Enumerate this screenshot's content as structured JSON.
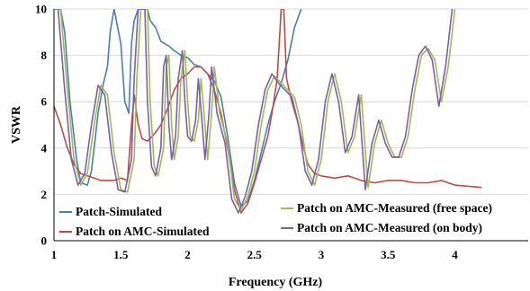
{
  "chart_data": {
    "type": "line",
    "xlabel": "Frequency (GHz)",
    "ylabel": "VSWR",
    "xlim": [
      1,
      4.2
    ],
    "ylim": [
      0,
      10
    ],
    "x_ticks": [
      "1",
      "1.5",
      "2",
      "2.5",
      "3",
      "3.5",
      "4"
    ],
    "y_ticks": [
      "0",
      "2",
      "4",
      "6",
      "8",
      "10"
    ],
    "grid": "horizontal",
    "legend_position": "bottom",
    "series": [
      {
        "name": "Patch-Simulated",
        "color": "#4a7ebb",
        "points": [
          [
            1.0,
            10.0
          ],
          [
            1.05,
            10.0
          ],
          [
            1.08,
            9.0
          ],
          [
            1.12,
            6.0
          ],
          [
            1.17,
            3.5
          ],
          [
            1.2,
            2.5
          ],
          [
            1.25,
            2.4
          ],
          [
            1.28,
            3.0
          ],
          [
            1.33,
            5.5
          ],
          [
            1.37,
            6.8
          ],
          [
            1.4,
            7.5
          ],
          [
            1.42,
            9.0
          ],
          [
            1.45,
            10.0
          ],
          [
            1.5,
            8.5
          ],
          [
            1.53,
            6.0
          ],
          [
            1.56,
            5.5
          ],
          [
            1.58,
            8.5
          ],
          [
            1.6,
            9.5
          ],
          [
            1.63,
            10.0
          ],
          [
            1.7,
            10.0
          ],
          [
            1.72,
            9.5
          ],
          [
            1.76,
            9.2
          ],
          [
            1.8,
            8.6
          ],
          [
            1.86,
            8.4
          ],
          [
            1.9,
            8.2
          ],
          [
            1.95,
            8.0
          ],
          [
            2.0,
            7.9
          ],
          [
            2.05,
            7.6
          ],
          [
            2.1,
            7.5
          ],
          [
            2.15,
            7.2
          ],
          [
            2.2,
            6.9
          ],
          [
            2.25,
            6.2
          ],
          [
            2.3,
            4.5
          ],
          [
            2.35,
            2.5
          ],
          [
            2.4,
            1.5
          ],
          [
            2.45,
            1.7
          ],
          [
            2.5,
            2.6
          ],
          [
            2.55,
            3.8
          ],
          [
            2.6,
            5.0
          ],
          [
            2.65,
            6.0
          ],
          [
            2.7,
            6.8
          ],
          [
            2.75,
            7.8
          ],
          [
            2.8,
            9.2
          ],
          [
            2.85,
            10.0
          ]
        ]
      },
      {
        "name": "Patch on AMC-Simulated",
        "color": "#be4b48",
        "points": [
          [
            1.0,
            5.8
          ],
          [
            1.05,
            5.0
          ],
          [
            1.1,
            4.0
          ],
          [
            1.15,
            3.3
          ],
          [
            1.2,
            2.9
          ],
          [
            1.25,
            2.8
          ],
          [
            1.3,
            2.7
          ],
          [
            1.35,
            2.6
          ],
          [
            1.4,
            2.6
          ],
          [
            1.45,
            2.6
          ],
          [
            1.5,
            2.7
          ],
          [
            1.55,
            2.6
          ],
          [
            1.58,
            5.0
          ],
          [
            1.6,
            6.3
          ],
          [
            1.63,
            5.0
          ],
          [
            1.66,
            4.4
          ],
          [
            1.7,
            4.3
          ],
          [
            1.75,
            4.6
          ],
          [
            1.8,
            5.0
          ],
          [
            1.85,
            5.7
          ],
          [
            1.9,
            6.5
          ],
          [
            1.95,
            7.0
          ],
          [
            2.0,
            7.2
          ],
          [
            2.05,
            7.5
          ],
          [
            2.1,
            7.5
          ],
          [
            2.15,
            7.2
          ],
          [
            2.2,
            6.5
          ],
          [
            2.25,
            5.5
          ],
          [
            2.3,
            4.0
          ],
          [
            2.35,
            2.2
          ],
          [
            2.4,
            1.2
          ],
          [
            2.45,
            1.6
          ],
          [
            2.5,
            2.5
          ],
          [
            2.55,
            3.5
          ],
          [
            2.6,
            4.5
          ],
          [
            2.64,
            5.8
          ],
          [
            2.67,
            7.0
          ],
          [
            2.7,
            10.0
          ],
          [
            2.72,
            10.0
          ],
          [
            2.74,
            7.0
          ],
          [
            2.78,
            6.0
          ],
          [
            2.82,
            5.2
          ],
          [
            2.86,
            4.2
          ],
          [
            2.9,
            3.3
          ],
          [
            2.95,
            2.9
          ],
          [
            3.0,
            2.8
          ],
          [
            3.1,
            2.7
          ],
          [
            3.2,
            2.8
          ],
          [
            3.3,
            2.6
          ],
          [
            3.4,
            2.5
          ],
          [
            3.5,
            2.6
          ],
          [
            3.6,
            2.6
          ],
          [
            3.7,
            2.5
          ],
          [
            3.8,
            2.5
          ],
          [
            3.9,
            2.6
          ],
          [
            4.0,
            2.4
          ],
          [
            4.2,
            2.3
          ]
        ]
      },
      {
        "name": "Patch on AMC-Measured (free space)",
        "color": "#9bbb59",
        "points": [
          [
            1.05,
            10.0
          ],
          [
            1.1,
            6.5
          ],
          [
            1.15,
            3.5
          ],
          [
            1.2,
            2.4
          ],
          [
            1.25,
            2.9
          ],
          [
            1.3,
            5.0
          ],
          [
            1.35,
            6.7
          ],
          [
            1.4,
            6.3
          ],
          [
            1.45,
            3.8
          ],
          [
            1.5,
            2.2
          ],
          [
            1.55,
            2.1
          ],
          [
            1.6,
            3.5
          ],
          [
            1.62,
            7.0
          ],
          [
            1.65,
            10.0
          ],
          [
            1.7,
            10.0
          ],
          [
            1.72,
            6.0
          ],
          [
            1.75,
            3.2
          ],
          [
            1.78,
            2.8
          ],
          [
            1.82,
            4.0
          ],
          [
            1.84,
            7.5
          ],
          [
            1.86,
            8.0
          ],
          [
            1.88,
            5.0
          ],
          [
            1.9,
            3.5
          ],
          [
            1.93,
            4.5
          ],
          [
            1.95,
            7.0
          ],
          [
            1.98,
            8.2
          ],
          [
            2.0,
            6.0
          ],
          [
            2.02,
            4.5
          ],
          [
            2.05,
            4.3
          ],
          [
            2.08,
            5.2
          ],
          [
            2.1,
            7.0
          ],
          [
            2.13,
            5.0
          ],
          [
            2.15,
            3.5
          ],
          [
            2.18,
            5.5
          ],
          [
            2.2,
            7.5
          ],
          [
            2.22,
            6.5
          ],
          [
            2.24,
            5.5
          ],
          [
            2.3,
            4.2
          ],
          [
            2.35,
            1.8
          ],
          [
            2.4,
            1.3
          ],
          [
            2.45,
            1.9
          ],
          [
            2.5,
            3.0
          ],
          [
            2.55,
            5.0
          ],
          [
            2.6,
            6.5
          ],
          [
            2.65,
            7.1
          ],
          [
            2.7,
            6.8
          ],
          [
            2.75,
            6.5
          ],
          [
            2.8,
            6.2
          ],
          [
            2.85,
            5.0
          ],
          [
            2.9,
            3.0
          ],
          [
            2.95,
            2.4
          ],
          [
            3.0,
            3.5
          ],
          [
            3.05,
            6.0
          ],
          [
            3.1,
            7.2
          ],
          [
            3.15,
            6.0
          ],
          [
            3.2,
            3.8
          ],
          [
            3.25,
            4.5
          ],
          [
            3.3,
            6.3
          ],
          [
            3.35,
            2.3
          ],
          [
            3.4,
            4.2
          ],
          [
            3.45,
            5.2
          ],
          [
            3.5,
            4.2
          ],
          [
            3.55,
            3.6
          ],
          [
            3.6,
            3.6
          ],
          [
            3.65,
            4.5
          ],
          [
            3.7,
            6.5
          ],
          [
            3.75,
            8.0
          ],
          [
            3.8,
            8.3
          ],
          [
            3.85,
            7.8
          ],
          [
            3.9,
            6.0
          ],
          [
            3.95,
            7.5
          ],
          [
            4.0,
            10.0
          ]
        ]
      },
      {
        "name": "Patch on AMC-Measured (on body)",
        "color": "#7d60a0",
        "points": [
          [
            1.03,
            10.0
          ],
          [
            1.08,
            6.5
          ],
          [
            1.13,
            3.5
          ],
          [
            1.18,
            2.4
          ],
          [
            1.23,
            2.9
          ],
          [
            1.28,
            5.0
          ],
          [
            1.33,
            6.7
          ],
          [
            1.38,
            6.3
          ],
          [
            1.43,
            3.8
          ],
          [
            1.48,
            2.2
          ],
          [
            1.53,
            2.1
          ],
          [
            1.58,
            3.5
          ],
          [
            1.6,
            7.0
          ],
          [
            1.63,
            10.0
          ],
          [
            1.68,
            10.0
          ],
          [
            1.7,
            6.0
          ],
          [
            1.73,
            3.2
          ],
          [
            1.76,
            2.8
          ],
          [
            1.8,
            4.0
          ],
          [
            1.82,
            7.5
          ],
          [
            1.84,
            8.0
          ],
          [
            1.86,
            5.0
          ],
          [
            1.88,
            3.5
          ],
          [
            1.91,
            4.5
          ],
          [
            1.93,
            7.0
          ],
          [
            1.96,
            8.2
          ],
          [
            1.98,
            6.0
          ],
          [
            2.0,
            4.5
          ],
          [
            2.03,
            4.3
          ],
          [
            2.06,
            5.2
          ],
          [
            2.08,
            7.0
          ],
          [
            2.11,
            5.0
          ],
          [
            2.13,
            3.5
          ],
          [
            2.16,
            5.5
          ],
          [
            2.18,
            7.5
          ],
          [
            2.2,
            6.5
          ],
          [
            2.22,
            5.5
          ],
          [
            2.28,
            4.2
          ],
          [
            2.33,
            1.8
          ],
          [
            2.38,
            1.2
          ],
          [
            2.43,
            1.9
          ],
          [
            2.48,
            3.0
          ],
          [
            2.53,
            5.0
          ],
          [
            2.58,
            6.5
          ],
          [
            2.63,
            7.2
          ],
          [
            2.68,
            6.8
          ],
          [
            2.73,
            6.5
          ],
          [
            2.78,
            6.2
          ],
          [
            2.83,
            5.0
          ],
          [
            2.88,
            3.0
          ],
          [
            2.93,
            2.4
          ],
          [
            2.98,
            3.5
          ],
          [
            3.03,
            6.0
          ],
          [
            3.08,
            7.2
          ],
          [
            3.13,
            6.0
          ],
          [
            3.18,
            3.8
          ],
          [
            3.23,
            4.5
          ],
          [
            3.28,
            6.3
          ],
          [
            3.33,
            2.2
          ],
          [
            3.38,
            4.2
          ],
          [
            3.43,
            5.2
          ],
          [
            3.48,
            4.2
          ],
          [
            3.53,
            3.6
          ],
          [
            3.58,
            3.6
          ],
          [
            3.63,
            4.5
          ],
          [
            3.68,
            6.5
          ],
          [
            3.73,
            8.0
          ],
          [
            3.78,
            8.4
          ],
          [
            3.83,
            7.8
          ],
          [
            3.88,
            5.8
          ],
          [
            3.93,
            7.5
          ],
          [
            3.98,
            10.0
          ]
        ]
      }
    ]
  }
}
